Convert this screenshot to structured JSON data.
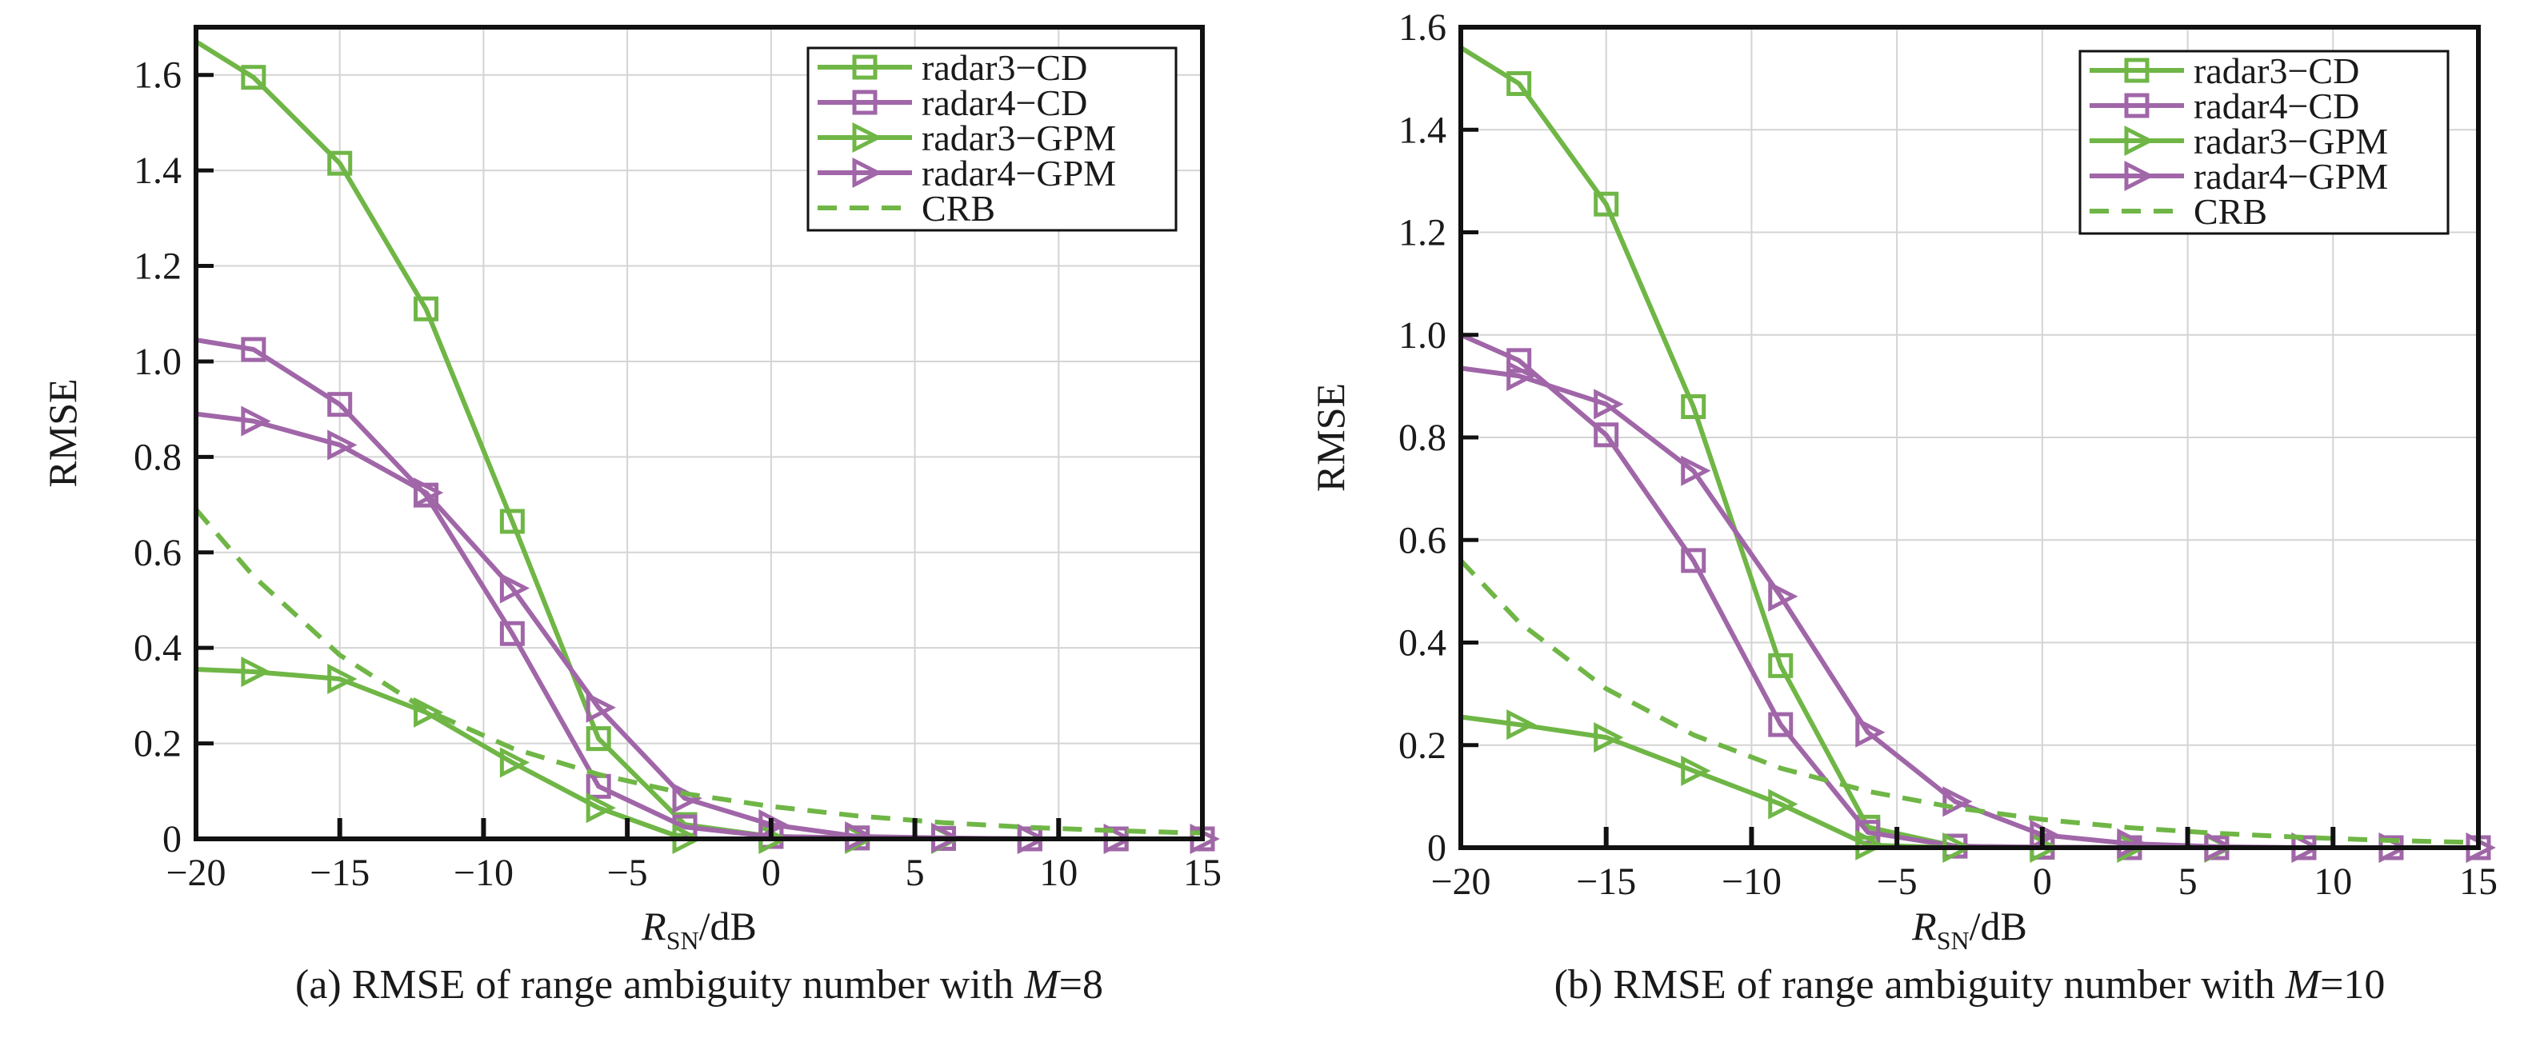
{
  "chart_data": [
    {
      "type": "line",
      "caption_prefix": "(a) RMSE of range ambiguity number with ",
      "caption_var": "M",
      "caption_eq": "=8",
      "ylabel": "RMSE",
      "xlabel_var": "R",
      "xlabel_sub": "SN",
      "xlabel_unit": "/dB",
      "xlim": [
        -20,
        15
      ],
      "ylim": [
        0,
        1.7
      ],
      "xticks": [
        -20,
        -15,
        -10,
        -5,
        0,
        5,
        10,
        15
      ],
      "xtick_labels": [
        "−20",
        "−15",
        "−10",
        "−5",
        "0",
        "5",
        "10",
        "15"
      ],
      "yticks": [
        0,
        0.2,
        0.4,
        0.6,
        0.8,
        1.0,
        1.2,
        1.4,
        1.6
      ],
      "ytick_labels": [
        "0",
        "0.2",
        "0.4",
        "0.6",
        "0.8",
        "1.0",
        "1.2",
        "1.4",
        "1.6"
      ],
      "grid": true,
      "legend_position": "top-right",
      "series": [
        {
          "name": "radar3−CD",
          "color": "#6fb646",
          "style": "solid",
          "marker": "square",
          "x": [
            -20,
            -18,
            -15,
            -12,
            -9,
            -6,
            -3,
            0,
            3,
            6,
            9,
            12,
            15
          ],
          "y": [
            1.67,
            1.595,
            1.415,
            1.11,
            0.665,
            0.21,
            0.03,
            0.005,
            0.002,
            0.001,
            0.0,
            0.0,
            0.0
          ],
          "marker_from": 1
        },
        {
          "name": "radar4−CD",
          "color": "#a066a8",
          "style": "solid",
          "marker": "square",
          "x": [
            -20,
            -18,
            -15,
            -12,
            -9,
            -6,
            -3,
            0,
            3,
            6,
            9,
            12,
            15
          ],
          "y": [
            1.045,
            1.025,
            0.91,
            0.72,
            0.43,
            0.11,
            0.025,
            0.005,
            0.002,
            0.001,
            0.0,
            0.0,
            0.0
          ],
          "marker_from": 1
        },
        {
          "name": "radar3−GPM",
          "color": "#6fb646",
          "style": "solid",
          "marker": "triangle-right",
          "x": [
            -20,
            -18,
            -15,
            -12,
            -9,
            -6,
            -3,
            0,
            3,
            6,
            9,
            12,
            15
          ],
          "y": [
            0.355,
            0.35,
            0.335,
            0.265,
            0.16,
            0.065,
            0.0,
            0.0,
            0.0,
            0.0,
            0.0,
            0.0,
            0.0
          ],
          "marker_from": 1
        },
        {
          "name": "radar4−GPM",
          "color": "#a066a8",
          "style": "solid",
          "marker": "triangle-right",
          "x": [
            -20,
            -18,
            -15,
            -12,
            -9,
            -6,
            -3,
            0,
            3,
            6,
            9,
            12,
            15
          ],
          "y": [
            0.89,
            0.875,
            0.825,
            0.725,
            0.525,
            0.275,
            0.085,
            0.03,
            0.005,
            0.002,
            0.0,
            0.0,
            0.0
          ],
          "marker_from": 1
        },
        {
          "name": "CRB",
          "color": "#6fb646",
          "style": "dashed",
          "marker": "none",
          "x": [
            -20,
            -18,
            -15,
            -12,
            -9,
            -6,
            -3,
            0,
            3,
            6,
            9,
            12,
            15
          ],
          "y": [
            0.69,
            0.55,
            0.385,
            0.27,
            0.19,
            0.135,
            0.095,
            0.068,
            0.048,
            0.034,
            0.024,
            0.017,
            0.012
          ]
        }
      ]
    },
    {
      "type": "line",
      "caption_prefix": "(b) RMSE of range ambiguity number with ",
      "caption_var": "M",
      "caption_eq": "=10",
      "ylabel": "RMSE",
      "xlabel_var": "R",
      "xlabel_sub": "SN",
      "xlabel_unit": "/dB",
      "xlim": [
        -20,
        15
      ],
      "ylim": [
        0,
        1.6
      ],
      "xticks": [
        -20,
        -15,
        -10,
        -5,
        0,
        5,
        10,
        15
      ],
      "xtick_labels": [
        "−20",
        "−15",
        "−10",
        "−5",
        "0",
        "5",
        "10",
        "15"
      ],
      "yticks": [
        0,
        0.2,
        0.4,
        0.6,
        0.8,
        1.0,
        1.2,
        1.4,
        1.6
      ],
      "ytick_labels": [
        "0",
        "0.2",
        "0.4",
        "0.6",
        "0.8",
        "1.0",
        "1.2",
        "1.4",
        "1.6"
      ],
      "grid": true,
      "legend_position": "top-right",
      "series": [
        {
          "name": "radar3−CD",
          "color": "#6fb646",
          "style": "solid",
          "marker": "square",
          "x": [
            -20,
            -18,
            -15,
            -12,
            -9,
            -6,
            -3,
            0,
            3,
            6,
            9,
            12,
            15
          ],
          "y": [
            1.56,
            1.49,
            1.255,
            0.86,
            0.355,
            0.04,
            0.003,
            0.001,
            0.0,
            0.0,
            0.0,
            0.0,
            0.0
          ],
          "marker_from": 1
        },
        {
          "name": "radar4−CD",
          "color": "#a066a8",
          "style": "solid",
          "marker": "square",
          "x": [
            -20,
            -18,
            -15,
            -12,
            -9,
            -6,
            -3,
            0,
            3,
            6,
            9,
            12,
            15
          ],
          "y": [
            1.0,
            0.95,
            0.805,
            0.56,
            0.24,
            0.03,
            0.003,
            0.001,
            0.0,
            0.0,
            0.0,
            0.0,
            0.0
          ],
          "marker_from": 1
        },
        {
          "name": "radar3−GPM",
          "color": "#6fb646",
          "style": "solid",
          "marker": "triangle-right",
          "x": [
            -20,
            -18,
            -15,
            -12,
            -9,
            -6,
            -3,
            0,
            3,
            6,
            9,
            12,
            15
          ],
          "y": [
            0.255,
            0.24,
            0.215,
            0.15,
            0.085,
            0.005,
            0.0,
            0.0,
            0.0,
            0.0,
            0.0,
            0.0,
            0.0
          ],
          "marker_from": 1
        },
        {
          "name": "radar4−GPM",
          "color": "#a066a8",
          "style": "solid",
          "marker": "triangle-right",
          "x": [
            -20,
            -18,
            -15,
            -12,
            -9,
            -6,
            -3,
            0,
            3,
            6,
            9,
            12,
            15
          ],
          "y": [
            0.935,
            0.92,
            0.865,
            0.735,
            0.49,
            0.225,
            0.09,
            0.025,
            0.008,
            0.002,
            0.0,
            0.0,
            0.0
          ],
          "marker_from": 1
        },
        {
          "name": "CRB",
          "color": "#6fb646",
          "style": "dashed",
          "marker": "none",
          "x": [
            -20,
            -18,
            -15,
            -12,
            -9,
            -6,
            -3,
            0,
            3,
            6,
            9,
            12,
            15
          ],
          "y": [
            0.56,
            0.44,
            0.31,
            0.22,
            0.155,
            0.11,
            0.078,
            0.055,
            0.039,
            0.028,
            0.02,
            0.014,
            0.01
          ]
        }
      ]
    }
  ]
}
